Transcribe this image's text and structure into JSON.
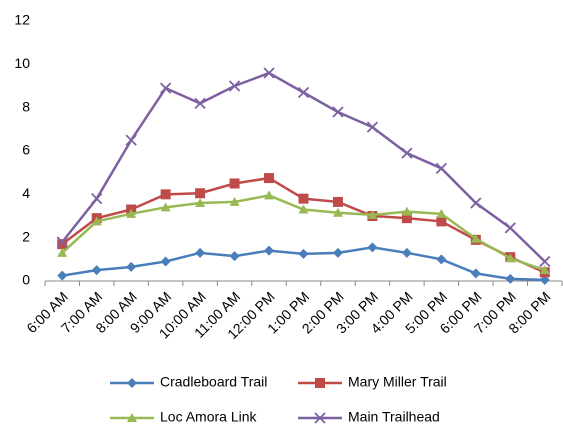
{
  "chart_data": {
    "type": "line",
    "categories": [
      "6:00 AM",
      "7:00 AM",
      "8:00 AM",
      "9:00 AM",
      "10:00 AM",
      "11:00 AM",
      "12:00 PM",
      "1:00 PM",
      "2:00 PM",
      "3:00 PM",
      "4:00 PM",
      "5:00 PM",
      "6:00 PM",
      "7:00 PM",
      "8:00 PM"
    ],
    "series": [
      {
        "name": "Cradleboard Trail",
        "color": "#4a7ebb",
        "marker": "diamond",
        "values": [
          0.25,
          0.5,
          0.65,
          0.9,
          1.3,
          1.15,
          1.4,
          1.25,
          1.3,
          1.55,
          1.3,
          1.0,
          0.35,
          0.1,
          0.05
        ]
      },
      {
        "name": "Mary Miller Trail",
        "color": "#be4b48",
        "marker": "square",
        "values": [
          1.7,
          2.9,
          3.3,
          4.0,
          4.05,
          4.5,
          4.75,
          3.8,
          3.65,
          3.0,
          2.9,
          2.75,
          1.9,
          1.1,
          0.4
        ]
      },
      {
        "name": "Loc Amora Link",
        "color": "#98b954",
        "marker": "triangle",
        "values": [
          1.3,
          2.75,
          3.1,
          3.4,
          3.6,
          3.65,
          3.95,
          3.3,
          3.15,
          3.05,
          3.2,
          3.1,
          1.95,
          1.05,
          0.5
        ]
      },
      {
        "name": "Main Trailhead",
        "color": "#7d60a0",
        "marker": "x",
        "values": [
          1.8,
          3.8,
          6.5,
          8.9,
          8.2,
          9.0,
          9.6,
          8.7,
          7.8,
          7.1,
          5.9,
          5.2,
          3.6,
          2.45,
          0.9
        ]
      }
    ],
    "ylim": [
      0,
      12
    ],
    "yticks": [
      0,
      2,
      4,
      6,
      8,
      10,
      12
    ],
    "grid": false
  }
}
